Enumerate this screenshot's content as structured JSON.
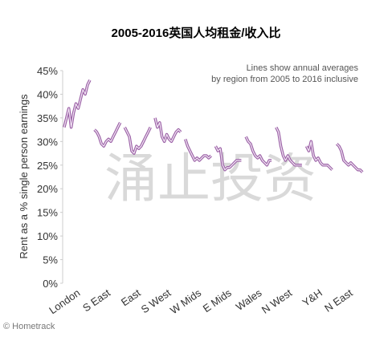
{
  "chart_data": {
    "type": "line",
    "title": "2005-2016英国人均租金/收入比",
    "annotation": "Lines show annual averages\nby region from 2005 to 2016 inclusive",
    "ylabel": "Rent as a % single person earnings",
    "source": "© Hometrack",
    "watermark": "涌止投资",
    "color": "#9a5fa5",
    "ylim": [
      0,
      45
    ],
    "yticks": [
      {
        "value": 0,
        "label": "0%"
      },
      {
        "value": 5,
        "label": "5%"
      },
      {
        "value": 10,
        "label": "10%"
      },
      {
        "value": 15,
        "label": "15%"
      },
      {
        "value": 20,
        "label": "20%"
      },
      {
        "value": 25,
        "label": "25%"
      },
      {
        "value": 30,
        "label": "30%"
      },
      {
        "value": 35,
        "label": "35%"
      },
      {
        "value": 40,
        "label": "40%"
      },
      {
        "value": 45,
        "label": "45%"
      }
    ],
    "series": [
      {
        "name": "London",
        "values": [
          33,
          35,
          37,
          33,
          36,
          38,
          37,
          39,
          41,
          40,
          42,
          43
        ]
      },
      {
        "name": "S East",
        "values": [
          32.5,
          32,
          31,
          29.5,
          29,
          30,
          30.5,
          30,
          31,
          32,
          33,
          34
        ]
      },
      {
        "name": "East",
        "values": [
          33,
          32,
          31,
          28,
          27.5,
          29,
          28.5,
          29,
          30,
          31,
          32,
          33
        ]
      },
      {
        "name": "S West",
        "values": [
          35,
          33,
          34,
          31,
          30,
          31.5,
          30.5,
          30,
          31,
          32,
          32.5,
          32
        ]
      },
      {
        "name": "W Mids",
        "values": [
          30.5,
          29,
          28,
          27,
          26,
          26.5,
          26,
          26.5,
          27,
          27,
          26.5,
          27
        ]
      },
      {
        "name": "E Mids",
        "values": [
          29,
          28,
          28.5,
          25,
          24,
          24.5,
          24.5,
          25,
          25.5,
          26,
          26,
          26
        ]
      },
      {
        "name": "Wales",
        "values": [
          31,
          30,
          29.5,
          28,
          27,
          26.5,
          27,
          26,
          25.5,
          25,
          26,
          26
        ]
      },
      {
        "name": "N West",
        "values": [
          33,
          32,
          29,
          27,
          26,
          27,
          26,
          25.5,
          25,
          25,
          25,
          25
        ]
      },
      {
        "name": "Y&H",
        "values": [
          29,
          28,
          30,
          27,
          26,
          26.5,
          25.5,
          25,
          25,
          25,
          24.5,
          24
        ]
      },
      {
        "name": "N East",
        "values": [
          29.5,
          29,
          28,
          26,
          25.5,
          25,
          25.5,
          25,
          24.5,
          24,
          24,
          23.5
        ]
      }
    ]
  }
}
